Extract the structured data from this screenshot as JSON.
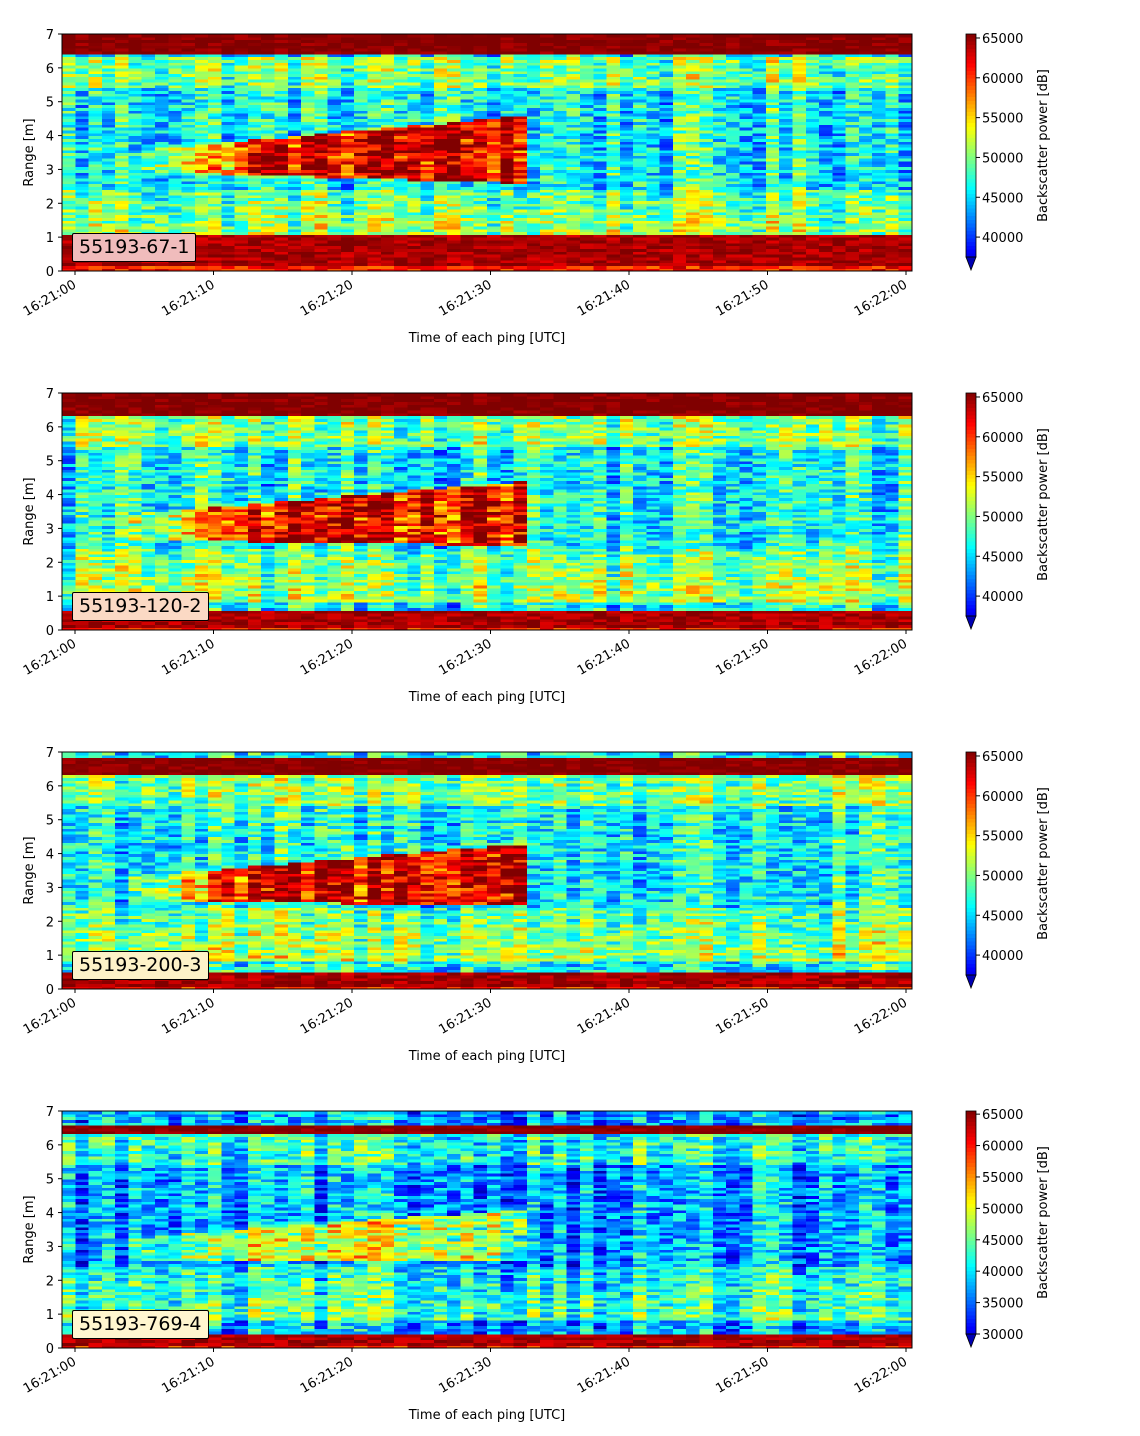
{
  "chart_data": [
    {
      "type": "heatmap",
      "annotation": "55193-67-1",
      "xlabel": "Time of each ping [UTC]",
      "ylabel": "Range [m]",
      "ylim": [
        0,
        7
      ],
      "yticks": [
        "0",
        "1",
        "2",
        "3",
        "4",
        "5",
        "6",
        "7"
      ],
      "xticks": [
        "16:21:00",
        "16:21:10",
        "16:21:20",
        "16:21:30",
        "16:21:40",
        "16:21:50",
        "16:22:00"
      ],
      "colorbar": {
        "label": "Backscatter power [dB]",
        "ticks": [
          "40000",
          "45000",
          "50000",
          "55000",
          "60000",
          "65000"
        ],
        "vmin": 37500,
        "vmax": 65500,
        "extend": "min"
      },
      "colormap": "jet",
      "features": {
        "surface": [
          6.4,
          7.0
        ],
        "bottom": [
          0.2,
          1.1
        ],
        "layer": {
          "top_start": 3.4,
          "top_end": 4.6,
          "bot_start": 3.0,
          "bot_end": 2.6,
          "end_time_s": 32.5
        }
      }
    },
    {
      "type": "heatmap",
      "annotation": "55193-120-2",
      "xlabel": "Time of each ping [UTC]",
      "ylabel": "Range [m]",
      "ylim": [
        0,
        7
      ],
      "yticks": [
        "0",
        "1",
        "2",
        "3",
        "4",
        "5",
        "6",
        "7"
      ],
      "xticks": [
        "16:21:00",
        "16:21:10",
        "16:21:20",
        "16:21:30",
        "16:21:40",
        "16:21:50",
        "16:22:00"
      ],
      "colorbar": {
        "label": "Backscatter power [dB]",
        "ticks": [
          "40000",
          "45000",
          "50000",
          "55000",
          "60000",
          "65000"
        ],
        "vmin": 37500,
        "vmax": 65500,
        "extend": "min"
      },
      "colormap": "jet",
      "features": {
        "surface": [
          6.3,
          7.0
        ],
        "bottom": [
          0.1,
          0.6
        ],
        "layer": {
          "top_start": 3.3,
          "top_end": 4.4,
          "bot_start": 2.7,
          "bot_end": 2.5,
          "end_time_s": 32.5
        }
      }
    },
    {
      "type": "heatmap",
      "annotation": "55193-200-3",
      "xlabel": "Time of each ping [UTC]",
      "ylabel": "Range [m]",
      "ylim": [
        0,
        7
      ],
      "yticks": [
        "0",
        "1",
        "2",
        "3",
        "4",
        "5",
        "6",
        "7"
      ],
      "xticks": [
        "16:21:00",
        "16:21:10",
        "16:21:20",
        "16:21:30",
        "16:21:40",
        "16:21:50",
        "16:22:00"
      ],
      "colorbar": {
        "label": "Backscatter power [dB]",
        "ticks": [
          "40000",
          "45000",
          "50000",
          "55000",
          "60000",
          "65000"
        ],
        "vmin": 37500,
        "vmax": 65500,
        "extend": "min"
      },
      "colormap": "jet",
      "features": {
        "surface": [
          6.3,
          6.8
        ],
        "bottom": [
          0.1,
          0.5
        ],
        "layer": {
          "top_start": 3.2,
          "top_end": 4.3,
          "bot_start": 2.6,
          "bot_end": 2.5,
          "end_time_s": 32.5
        }
      }
    },
    {
      "type": "heatmap",
      "annotation": "55193-769-4",
      "xlabel": "Time of each ping [UTC]",
      "ylabel": "Range [m]",
      "ylim": [
        0,
        7
      ],
      "yticks": [
        "0",
        "1",
        "2",
        "3",
        "4",
        "5",
        "6",
        "7"
      ],
      "xticks": [
        "16:21:00",
        "16:21:10",
        "16:21:20",
        "16:21:30",
        "16:21:40",
        "16:21:50",
        "16:22:00"
      ],
      "colorbar": {
        "label": "Backscatter power [dB]",
        "ticks": [
          "30000",
          "35000",
          "40000",
          "45000",
          "50000",
          "55000",
          "60000",
          "65000"
        ],
        "vmin": 30000,
        "vmax": 65500,
        "extend": "min"
      },
      "colormap": "jet",
      "features": {
        "surface": [
          6.3,
          6.6
        ],
        "bottom": [
          0.1,
          0.4
        ],
        "layer": {
          "top_start": 3.2,
          "top_end": 4.1,
          "bot_start": 2.6,
          "bot_end": 2.6,
          "end_time_s": 32.5
        }
      }
    }
  ],
  "annotation_colors": [
    "#f0bcbc",
    "#fbd9c4",
    "#fdf2c8",
    "#fff6cf"
  ]
}
